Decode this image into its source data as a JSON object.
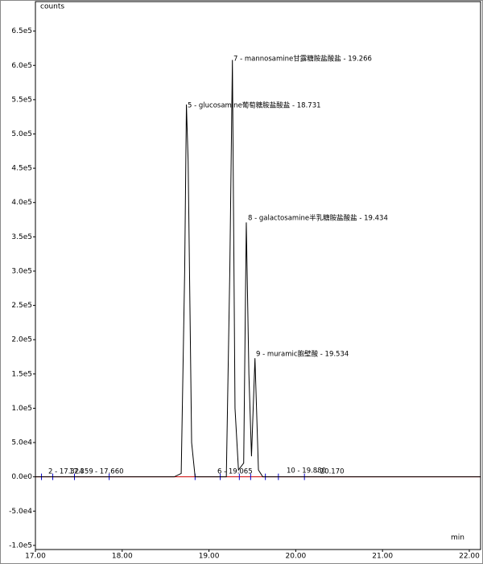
{
  "chart_data": {
    "type": "line",
    "y_label": "counts",
    "x_label": "min",
    "x": [
      17.0,
      18.6,
      18.68,
      18.72,
      18.74,
      18.76,
      18.8,
      18.84,
      19.2,
      19.24,
      19.27,
      19.3,
      19.34,
      19.4,
      19.43,
      19.46,
      19.49,
      19.53,
      19.57,
      19.62,
      22.13
    ],
    "series": [
      {
        "color": "#000000",
        "values": [
          0,
          0,
          5000,
          300000,
          543000,
          460000,
          50000,
          0,
          0,
          300000,
          608000,
          100000,
          10000,
          20000,
          371000,
          150000,
          30000,
          173000,
          10000,
          0,
          0
        ]
      }
    ],
    "annotations": [
      "2 - 17.324",
      "17.359",
      "- 17.660",
      "5 - glucosamine葡萄糖胺盐酸盐 - 18.731",
      "6 - 19.065",
      "7 - mannosamine甘露糖胺盐酸盐 - 19.266",
      "8 - galactosamine半乳糖胺盐酸盐 - 19.434",
      "9 - muramic胞壁酸 - 19.534",
      "10 - 19.880",
      "- 20.170"
    ],
    "xlim": [
      17.0,
      22.13
    ],
    "ylim": [
      -106000,
      693000
    ],
    "xticks": [
      {
        "value": 17,
        "label": "17.00"
      },
      {
        "value": 18,
        "label": "18.00"
      },
      {
        "value": 19,
        "label": "19.00"
      },
      {
        "value": 20,
        "label": "20.00"
      },
      {
        "value": 21,
        "label": "21.00"
      },
      {
        "value": 22,
        "label": "22.00"
      }
    ],
    "yticks": [
      {
        "value": -100000,
        "label": "-1.0e5"
      },
      {
        "value": -50000,
        "label": "-5.0e4"
      },
      {
        "value": 0,
        "label": "0.0e0"
      },
      {
        "value": 50000,
        "label": "5.0e4"
      },
      {
        "value": 100000,
        "label": "1.0e5"
      },
      {
        "value": 150000,
        "label": "1.5e5"
      },
      {
        "value": 200000,
        "label": "2.0e5"
      },
      {
        "value": 250000,
        "label": "2.5e5"
      },
      {
        "value": 300000,
        "label": "3.0e5"
      },
      {
        "value": 350000,
        "label": "3.5e5"
      },
      {
        "value": 400000,
        "label": "4.0e5"
      },
      {
        "value": 450000,
        "label": "4.5e5"
      },
      {
        "value": 500000,
        "label": "5.0e5"
      },
      {
        "value": 550000,
        "label": "5.5e5"
      },
      {
        "value": 600000,
        "label": "6.0e5"
      },
      {
        "value": 650000,
        "label": "6.5e5"
      }
    ],
    "grid": false
  }
}
